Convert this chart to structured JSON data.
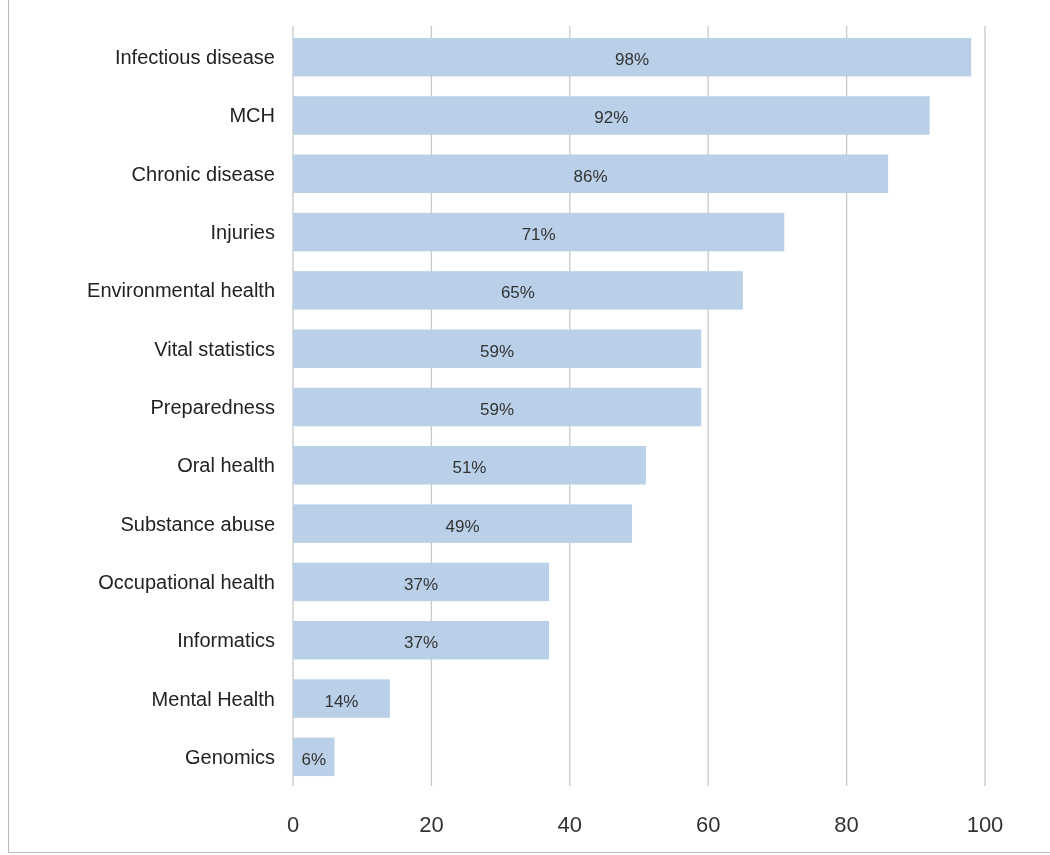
{
  "chart_data": {
    "type": "bar",
    "orientation": "horizontal",
    "categories": [
      "Infectious disease",
      "MCH",
      "Chronic disease",
      "Injuries",
      "Environmental health",
      "Vital statistics",
      "Preparedness",
      "Oral health",
      "Substance abuse",
      "Occupational health",
      "Informatics",
      "Mental Health",
      "Genomics"
    ],
    "values": [
      98,
      92,
      86,
      71,
      65,
      59,
      59,
      51,
      49,
      37,
      37,
      14,
      6
    ],
    "value_labels": [
      "98%",
      "92%",
      "86%",
      "71%",
      "65%",
      "59%",
      "59%",
      "51%",
      "49%",
      "37%",
      "37%",
      "14%",
      "6%"
    ],
    "color": "#b9d0e8",
    "xlim": [
      0,
      100
    ],
    "xticks": [
      0,
      20,
      40,
      60,
      80,
      100
    ],
    "grid": "x"
  }
}
